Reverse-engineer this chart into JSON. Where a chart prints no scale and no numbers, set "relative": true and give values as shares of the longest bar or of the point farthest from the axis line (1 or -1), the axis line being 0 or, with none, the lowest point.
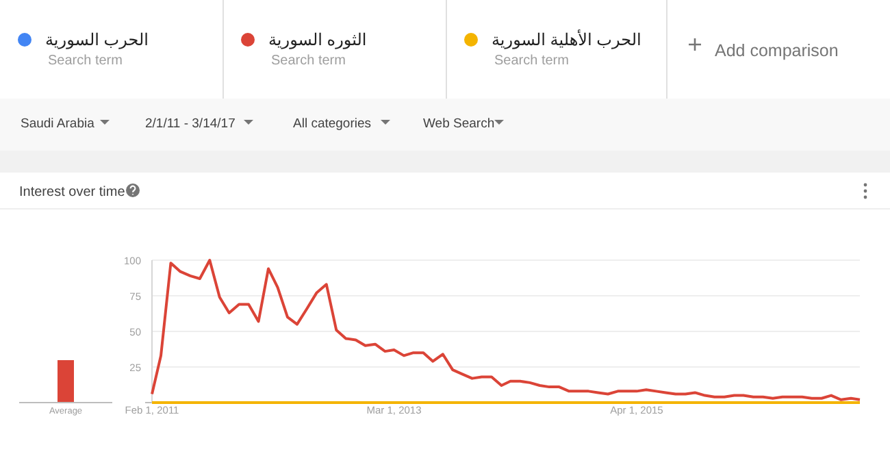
{
  "chart_data": [
    {
      "type": "bar",
      "title": "Interest over time",
      "categories": [
        "Average"
      ],
      "relative": true,
      "series": [
        {
          "color": "#db4437",
          "values": [
            1
          ]
        }
      ]
    },
    {
      "type": "line",
      "legend": "top",
      "grid": "y",
      "marker": "none",
      "line_style": "solid",
      "annotations": [
        "Search term",
        "Search term",
        "Search term",
        "Add comparison",
        "Saudi Arabia",
        "2/1/11 - 3/14/17",
        "All categories",
        "Web Search"
      ],
      "x": [
        "2011-02",
        "2011-03",
        "2011-04",
        "2011-05",
        "2011-06",
        "2011-07",
        "2011-08",
        "2011-09",
        "2011-10",
        "2011-11",
        "2011-12",
        "2012-01",
        "2012-02",
        "2012-03",
        "2012-04",
        "2012-05",
        "2012-06",
        "2012-07",
        "2012-08",
        "2012-09",
        "2012-10",
        "2012-11",
        "2012-12",
        "2013-01",
        "2013-02",
        "2013-03",
        "2013-04",
        "2013-05",
        "2013-06",
        "2013-07",
        "2013-08",
        "2013-09",
        "2013-10",
        "2013-11",
        "2013-12",
        "2014-01",
        "2014-02",
        "2014-03",
        "2014-04",
        "2014-05",
        "2014-06",
        "2014-07",
        "2014-08",
        "2014-09",
        "2014-10",
        "2014-11",
        "2014-12",
        "2015-01",
        "2015-02",
        "2015-03",
        "2015-04",
        "2015-05",
        "2015-06",
        "2015-07",
        "2015-08",
        "2015-09",
        "2015-10",
        "2015-11",
        "2015-12",
        "2016-01",
        "2016-02",
        "2016-03",
        "2016-04",
        "2016-05",
        "2016-06",
        "2016-07",
        "2016-08",
        "2016-09",
        "2016-10",
        "2016-11",
        "2016-12",
        "2017-01",
        "2017-02",
        "2017-03"
      ],
      "xlim": [
        "2011-02",
        "2017-03"
      ],
      "xticks": [
        {
          "value": "2011-02-01",
          "label": "Feb 1, 2011"
        },
        {
          "value": "2013-03-01",
          "label": "Mar 1, 2013"
        },
        {
          "value": "2015-04-01",
          "label": "Apr 1, 2015"
        }
      ],
      "ylim": [
        0,
        100
      ],
      "yticks": [
        {
          "value": 0,
          "label": null
        },
        25,
        50,
        75,
        100
      ],
      "series": [
        {
          "name": "الحرب السورية",
          "color": "#4285f4",
          "values": [
            null,
            null,
            null,
            null,
            null,
            null,
            null,
            null,
            null,
            null,
            null,
            null,
            null,
            null,
            null,
            null,
            null,
            null,
            null,
            null,
            null,
            null,
            null,
            null,
            null,
            null,
            null,
            null,
            null,
            null,
            null,
            null,
            null,
            null,
            null,
            null,
            null,
            null,
            null,
            null,
            null,
            null,
            null,
            null,
            null,
            null,
            null,
            null,
            null,
            null,
            null,
            null,
            null,
            null,
            null,
            null,
            null,
            null,
            null,
            null,
            null,
            null,
            null,
            null,
            null,
            null,
            null,
            null,
            null,
            null,
            null,
            null,
            null,
            null
          ]
        },
        {
          "name": "الثوره السورية",
          "color": "#db4437",
          "values": [
            6,
            33,
            98,
            92,
            89,
            87,
            100,
            74,
            63,
            69,
            69,
            57,
            94,
            81,
            60,
            55,
            66,
            77,
            83,
            51,
            45,
            44,
            40,
            41,
            36,
            37,
            33,
            35,
            35,
            29,
            34,
            23,
            20,
            17,
            18,
            18,
            12,
            15,
            15,
            14,
            12,
            11,
            11,
            8,
            8,
            8,
            7,
            6,
            8,
            8,
            8,
            9,
            8,
            7,
            6,
            6,
            7,
            5,
            4,
            4,
            5,
            5,
            4,
            4,
            3,
            4,
            4,
            4,
            3,
            3,
            5,
            2,
            3,
            2
          ]
        },
        {
          "name": "الحرب الأهلية السورية",
          "color": "#f4b400",
          "values": [
            0,
            0,
            0,
            0,
            0,
            0,
            0,
            0,
            0,
            0,
            0,
            0,
            0,
            0,
            0,
            0,
            0,
            0,
            0,
            0,
            0,
            0,
            0,
            0,
            0,
            0,
            0,
            0,
            0,
            0,
            0,
            0,
            0,
            0,
            0,
            0,
            0,
            0,
            0,
            0,
            0,
            0,
            0,
            0,
            0,
            0,
            0,
            0,
            0,
            0,
            0,
            0,
            0,
            0,
            0,
            0,
            0,
            0,
            0,
            0,
            0,
            0,
            0,
            0,
            0,
            0,
            0,
            0,
            0,
            0,
            0,
            0,
            0,
            0
          ]
        }
      ]
    }
  ]
}
